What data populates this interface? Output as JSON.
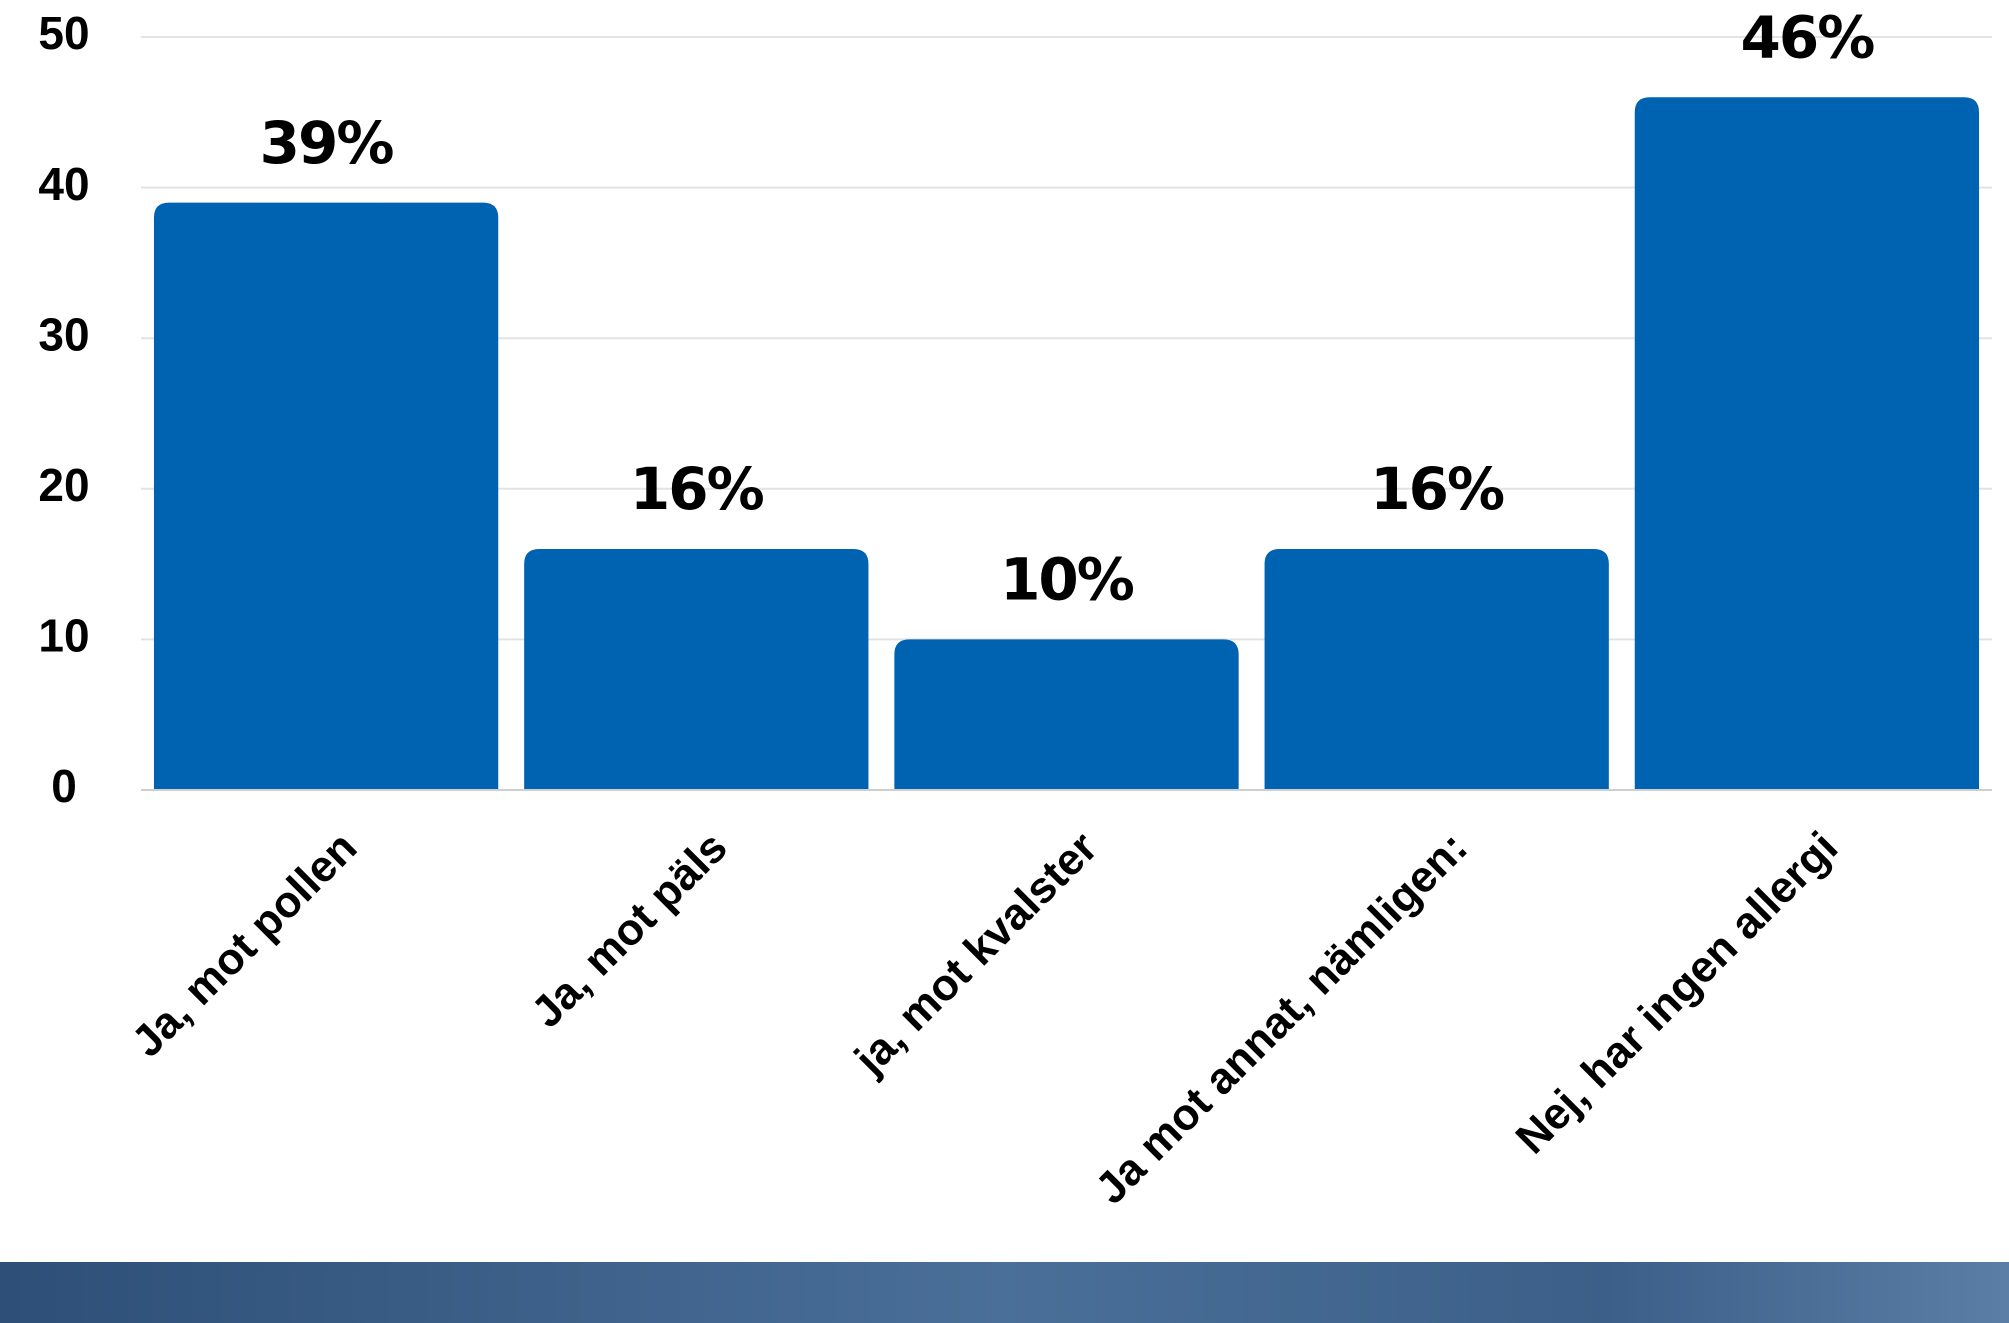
{
  "chart_data": {
    "type": "bar",
    "categories": [
      "Ja, mot pollen",
      "Ja, mot päls",
      "ja, mot kvalster",
      "Ja mot annat, nämligen:",
      "Nej, har ingen allergi"
    ],
    "values": [
      39,
      16,
      10,
      16,
      46
    ],
    "value_labels": [
      "39%",
      "16%",
      "10%",
      "16%",
      "46%"
    ],
    "color": "#0063b1",
    "ylim": [
      0,
      50
    ],
    "yticks": [
      0,
      10,
      20,
      30,
      40,
      50
    ],
    "grid": true
  }
}
